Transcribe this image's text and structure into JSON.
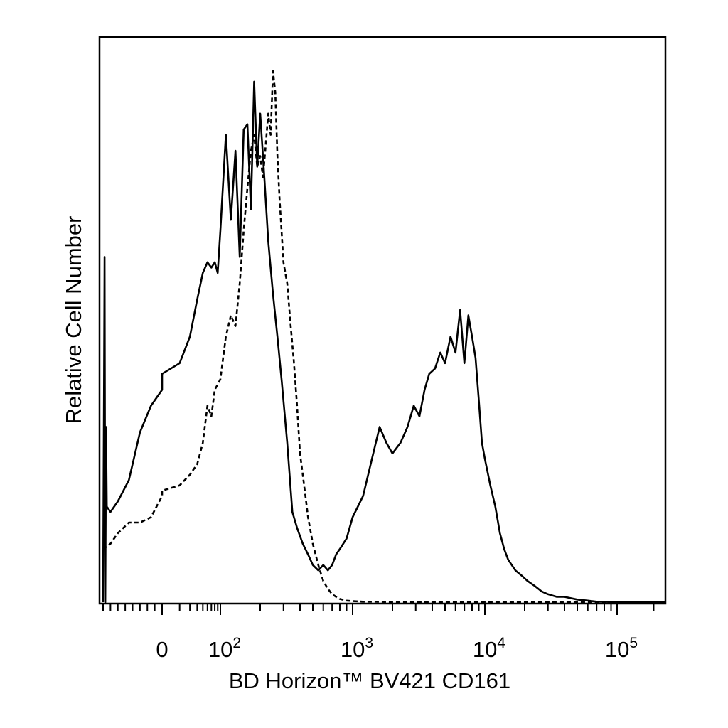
{
  "chart_data": {
    "type": "line",
    "title": "",
    "xlabel": "BD Horizon™ BV421 CD161",
    "ylabel": "Relative Cell Number",
    "x_scale": "biexponential",
    "xlim": [
      -80,
      250000
    ],
    "ylim": [
      0,
      100
    ],
    "grid": false,
    "legend": "none",
    "x_tick_labels": [
      {
        "value": 0,
        "base": "0",
        "exp": ""
      },
      {
        "value": 100,
        "base": "10",
        "exp": "2"
      },
      {
        "value": 1000,
        "base": "10",
        "exp": "3"
      },
      {
        "value": 10000,
        "base": "10",
        "exp": "4"
      },
      {
        "value": 100000,
        "base": "10",
        "exp": "5"
      }
    ],
    "series": [
      {
        "style": "solid",
        "color": "#000000",
        "x": [
          -80,
          -78,
          -77,
          -76,
          -75,
          -70,
          -60,
          -45,
          -30,
          -15,
          0,
          10,
          20,
          30,
          40,
          50,
          60,
          70,
          80,
          90,
          100,
          110,
          120,
          130,
          140,
          150,
          160,
          170,
          180,
          190,
          200,
          215,
          230,
          250,
          270,
          290,
          320,
          350,
          380,
          420,
          460,
          500,
          550,
          600,
          650,
          700,
          750,
          800,
          900,
          1000,
          1200,
          1400,
          1600,
          1800,
          2000,
          2300,
          2600,
          2900,
          3200,
          3500,
          3800,
          4200,
          4600,
          5000,
          5500,
          6000,
          6500,
          7000,
          7500,
          8000,
          8500,
          9000,
          9500,
          10000,
          11000,
          12000,
          13000,
          14000,
          15000,
          17000,
          19000,
          21000,
          24000,
          27000,
          30000,
          35000,
          40000,
          50000,
          60000,
          70000,
          80000,
          90000,
          100000,
          120000,
          150000,
          200000,
          250000
        ],
        "y": [
          0,
          65,
          0,
          33,
          18,
          17,
          19,
          23,
          32,
          37,
          40,
          43,
          45,
          50,
          57,
          62,
          64,
          63,
          64,
          62,
          70,
          88,
          72,
          85,
          65,
          89,
          90,
          74,
          98,
          82,
          92,
          80,
          68,
          58,
          50,
          42,
          30,
          17,
          14,
          11,
          9,
          7,
          6,
          7,
          6,
          7,
          9,
          10,
          12,
          16,
          20,
          27,
          33,
          30,
          28,
          30,
          33,
          37,
          35,
          40,
          43,
          44,
          47,
          45,
          50,
          47,
          55,
          45,
          54,
          50,
          46,
          38,
          30,
          27,
          22,
          18,
          13,
          10,
          8,
          6,
          5,
          4,
          3,
          2,
          1.5,
          1,
          1,
          0.5,
          0.3,
          0.1,
          0.1,
          0,
          0,
          0,
          0,
          0,
          0
        ]
      },
      {
        "style": "dashed",
        "color": "#000000",
        "x": [
          -80,
          -70,
          -60,
          -45,
          -30,
          -15,
          0,
          10,
          20,
          30,
          40,
          50,
          60,
          70,
          80,
          90,
          100,
          110,
          120,
          130,
          140,
          150,
          160,
          170,
          180,
          190,
          200,
          210,
          220,
          230,
          240,
          250,
          260,
          270,
          280,
          290,
          300,
          320,
          340,
          360,
          380,
          400,
          430,
          460,
          500,
          550,
          600,
          650,
          700,
          750,
          800,
          900,
          1000,
          1200,
          1500,
          2000,
          3000,
          5000,
          10000,
          20000,
          50000,
          100000,
          250000
        ],
        "y": [
          10,
          11,
          13,
          15,
          15,
          16,
          20,
          21,
          22,
          24,
          26,
          30,
          37,
          35,
          40,
          41,
          42,
          50,
          54,
          52,
          60,
          70,
          78,
          85,
          88,
          82,
          84,
          80,
          86,
          92,
          88,
          100,
          96,
          84,
          76,
          70,
          64,
          60,
          52,
          45,
          37,
          28,
          22,
          16,
          11,
          7,
          4,
          2.5,
          1.5,
          1,
          0.6,
          0.3,
          0.2,
          0.1,
          0.1,
          0,
          0,
          0,
          0,
          0,
          0,
          0,
          0
        ]
      }
    ]
  }
}
